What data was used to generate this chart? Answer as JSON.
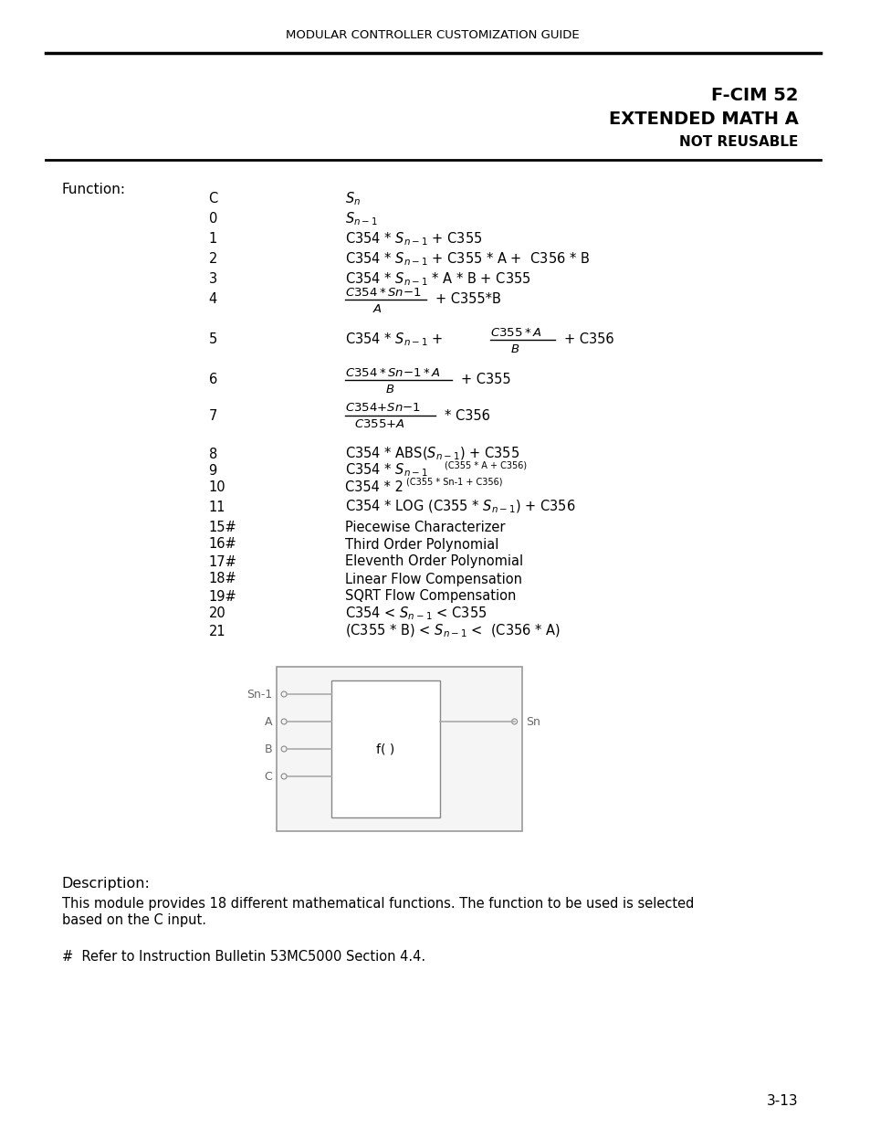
{
  "header_text": "MODULAR CONTROLLER CUSTOMIZATION GUIDE",
  "title_line1": "F-CIM 52",
  "title_line2": "EXTENDED MATH A",
  "title_line3": "NOT REUSABLE",
  "function_label": "Function:",
  "description_label": "Description:",
  "description_text": "This module provides 18 different mathematical functions. The function to be used is selected\nbased on the C input.",
  "footnote": "#  Refer to Instruction Bulletin 53MC5000 Section 4.4.",
  "page_number": "3-13",
  "bg_color": "#ffffff",
  "text_color": "#000000",
  "table_col1": [
    "C",
    "0",
    "1",
    "2",
    "3",
    "4",
    "5",
    "6",
    "7",
    "8",
    "9",
    "10",
    "11",
    "15#",
    "16#",
    "17#",
    "18#",
    "19#",
    "20",
    "21"
  ],
  "table_col2_text": [
    "Sn",
    "Sn-1",
    "C354 * Sn-1 + C355",
    "C354 * Sn-1 + C355 * A +  C356 * B",
    "C354 * Sn-1 * A * B + C355",
    null,
    null,
    null,
    null,
    "C354 * ABS(Sn-1) + C355",
    null,
    null,
    "C354 * LOG (C355 * Sn-1) + C356",
    "Piecewise Characterizer",
    "Third Order Polynomial",
    "Eleventh Order Polynomial",
    "Linear Flow Compensation",
    "SQRT Flow Compensation",
    "C354 < Sn-1 < C355",
    "(C355 * B) < Sn-1 <  (C356 * A)"
  ],
  "diagram_inputs": [
    "Sn-1",
    "A",
    "B",
    "C"
  ],
  "diagram_output": "Sn",
  "diagram_label": "f( )"
}
